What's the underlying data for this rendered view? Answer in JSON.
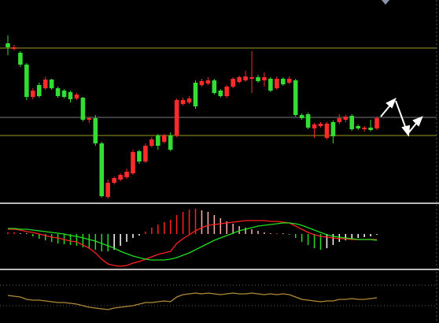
{
  "chart_data": [
    {
      "type": "candlestick",
      "up_color": "#ff2a2a",
      "down_color": "#33dd33",
      "ylim": [
        3,
        260
      ],
      "levels": [
        {
          "value": 199,
          "color": "#9a9a20"
        },
        {
          "value": 111,
          "color": "#7a7a7a"
        },
        {
          "value": 88,
          "color": "#9a9a20"
        }
      ],
      "open": [
        205,
        198,
        193,
        178,
        137,
        152,
        148,
        159,
        148,
        145,
        143,
        135,
        136,
        108,
        110,
        78,
        10,
        28,
        32,
        35,
        40,
        68,
        55,
        75,
        88,
        80,
        88,
        88,
        128,
        130,
        155,
        152,
        154,
        158,
        145,
        138,
        150,
        156,
        158,
        160,
        162,
        158,
        160,
        148,
        160,
        155,
        158,
        114,
        115,
        97,
        100,
        85,
        105,
        105,
        108,
        113,
        100,
        96,
        98,
        97
      ],
      "high": [
        215,
        203,
        195,
        180,
        148,
        155,
        162,
        160,
        150,
        147,
        145,
        142,
        137,
        112,
        114,
        80,
        32,
        36,
        40,
        46,
        70,
        70,
        78,
        86,
        90,
        90,
        92,
        135,
        136,
        138,
        158,
        160,
        162,
        160,
        147,
        152,
        162,
        164,
        170,
        195,
        165,
        168,
        162,
        163,
        162,
        163,
        160,
        116,
        117,
        104,
        105,
        105,
        107,
        115,
        114,
        115,
        102,
        100,
        108,
        112
      ],
      "low": [
        190,
        196,
        175,
        133,
        134,
        136,
        146,
        146,
        136,
        135,
        130,
        133,
        106,
        104,
        75,
        9,
        8,
        26,
        30,
        33,
        38,
        52,
        53,
        73,
        70,
        78,
        68,
        86,
        126,
        128,
        122,
        150,
        152,
        140,
        136,
        136,
        148,
        154,
        156,
        142,
        155,
        150,
        143,
        146,
        151,
        153,
        112,
        108,
        96,
        85,
        98,
        83,
        78,
        103,
        105,
        94,
        95,
        93,
        93,
        95
      ],
      "close": [
        200,
        200,
        178,
        137,
        145,
        138,
        159,
        148,
        138,
        137,
        134,
        140,
        108,
        110,
        78,
        11,
        28,
        34,
        38,
        42,
        67,
        55,
        75,
        83,
        75,
        88,
        70,
        133,
        133,
        135,
        125,
        157,
        158,
        142,
        138,
        150,
        160,
        162,
        163,
        162,
        157,
        162,
        145,
        160,
        153,
        160,
        114,
        110,
        98,
        102,
        103,
        103,
        87,
        110,
        112,
        96,
        97,
        98,
        95,
        110
      ]
    },
    {
      "type": "bar",
      "ylim": [
        -43,
        37
      ],
      "up_color": "#ff2020",
      "up_fade_color": "#ffb0b0",
      "down_color": "#20dd20",
      "down_fade_color": "#ffffff",
      "values": [
        2,
        2,
        1,
        0,
        -3,
        -6,
        -8,
        -10,
        -12,
        -13,
        -14,
        -15,
        -17,
        -18,
        -20,
        -22,
        -22,
        -20,
        -15,
        -10,
        -5,
        -2,
        3,
        8,
        12,
        15,
        18,
        24,
        28,
        31,
        32,
        30,
        28,
        24,
        20,
        16,
        13,
        10,
        8,
        6,
        4,
        2,
        1,
        1,
        0,
        -1,
        -5,
        -10,
        -14,
        -18,
        -20,
        -18,
        -14,
        -10,
        -8,
        -6,
        -5,
        -4,
        -3,
        -1
      ],
      "series": [
        {
          "color": "#ff2020",
          "values": [
            6,
            6,
            5,
            3,
            2,
            0,
            -2,
            -4,
            -5,
            -7,
            -9,
            -10,
            -14,
            -18,
            -24,
            -32,
            -38,
            -40,
            -41,
            -40,
            -37,
            -35,
            -32,
            -29,
            -26,
            -24,
            -22,
            -12,
            -6,
            -1,
            4,
            8,
            11,
            12,
            13,
            14,
            15,
            16,
            17,
            17,
            17,
            17,
            16,
            16,
            15,
            14,
            10,
            6,
            2,
            -1,
            -3,
            -4,
            -5,
            -6,
            -6,
            -7,
            -7,
            -7,
            -7,
            -7
          ]
        },
        {
          "color": "#20dd20",
          "values": [
            7,
            7,
            6,
            6,
            5,
            4,
            3,
            2,
            1,
            0,
            -2,
            -3,
            -5,
            -7,
            -9,
            -12,
            -15,
            -18,
            -22,
            -25,
            -28,
            -30,
            -32,
            -33,
            -33,
            -33,
            -32,
            -30,
            -27,
            -24,
            -20,
            -16,
            -12,
            -8,
            -5,
            -2,
            1,
            4,
            6,
            8,
            10,
            11,
            12,
            13,
            14,
            14,
            13,
            11,
            8,
            5,
            2,
            -1,
            -3,
            -4,
            -5,
            -6,
            -7,
            -7,
            -7,
            -8
          ]
        }
      ]
    },
    {
      "type": "line",
      "ylim": [
        0,
        65
      ],
      "levels": [
        {
          "value": 48,
          "color": "#666666"
        },
        {
          "value": 22,
          "color": "#666666"
        }
      ],
      "series": [
        {
          "color": "#b08a3a",
          "values": [
            35,
            34,
            33,
            30,
            29,
            29,
            28,
            27,
            26,
            26,
            25,
            24,
            22,
            20,
            19,
            18,
            17,
            19,
            20,
            21,
            22,
            24,
            26,
            26,
            27,
            28,
            27,
            33,
            36,
            37,
            38,
            37,
            38,
            37,
            36,
            37,
            38,
            37,
            37,
            38,
            37,
            36,
            37,
            36,
            37,
            36,
            33,
            30,
            29,
            28,
            27,
            28,
            28,
            30,
            30,
            31,
            30,
            30,
            31,
            32
          ]
        }
      ]
    }
  ]
}
